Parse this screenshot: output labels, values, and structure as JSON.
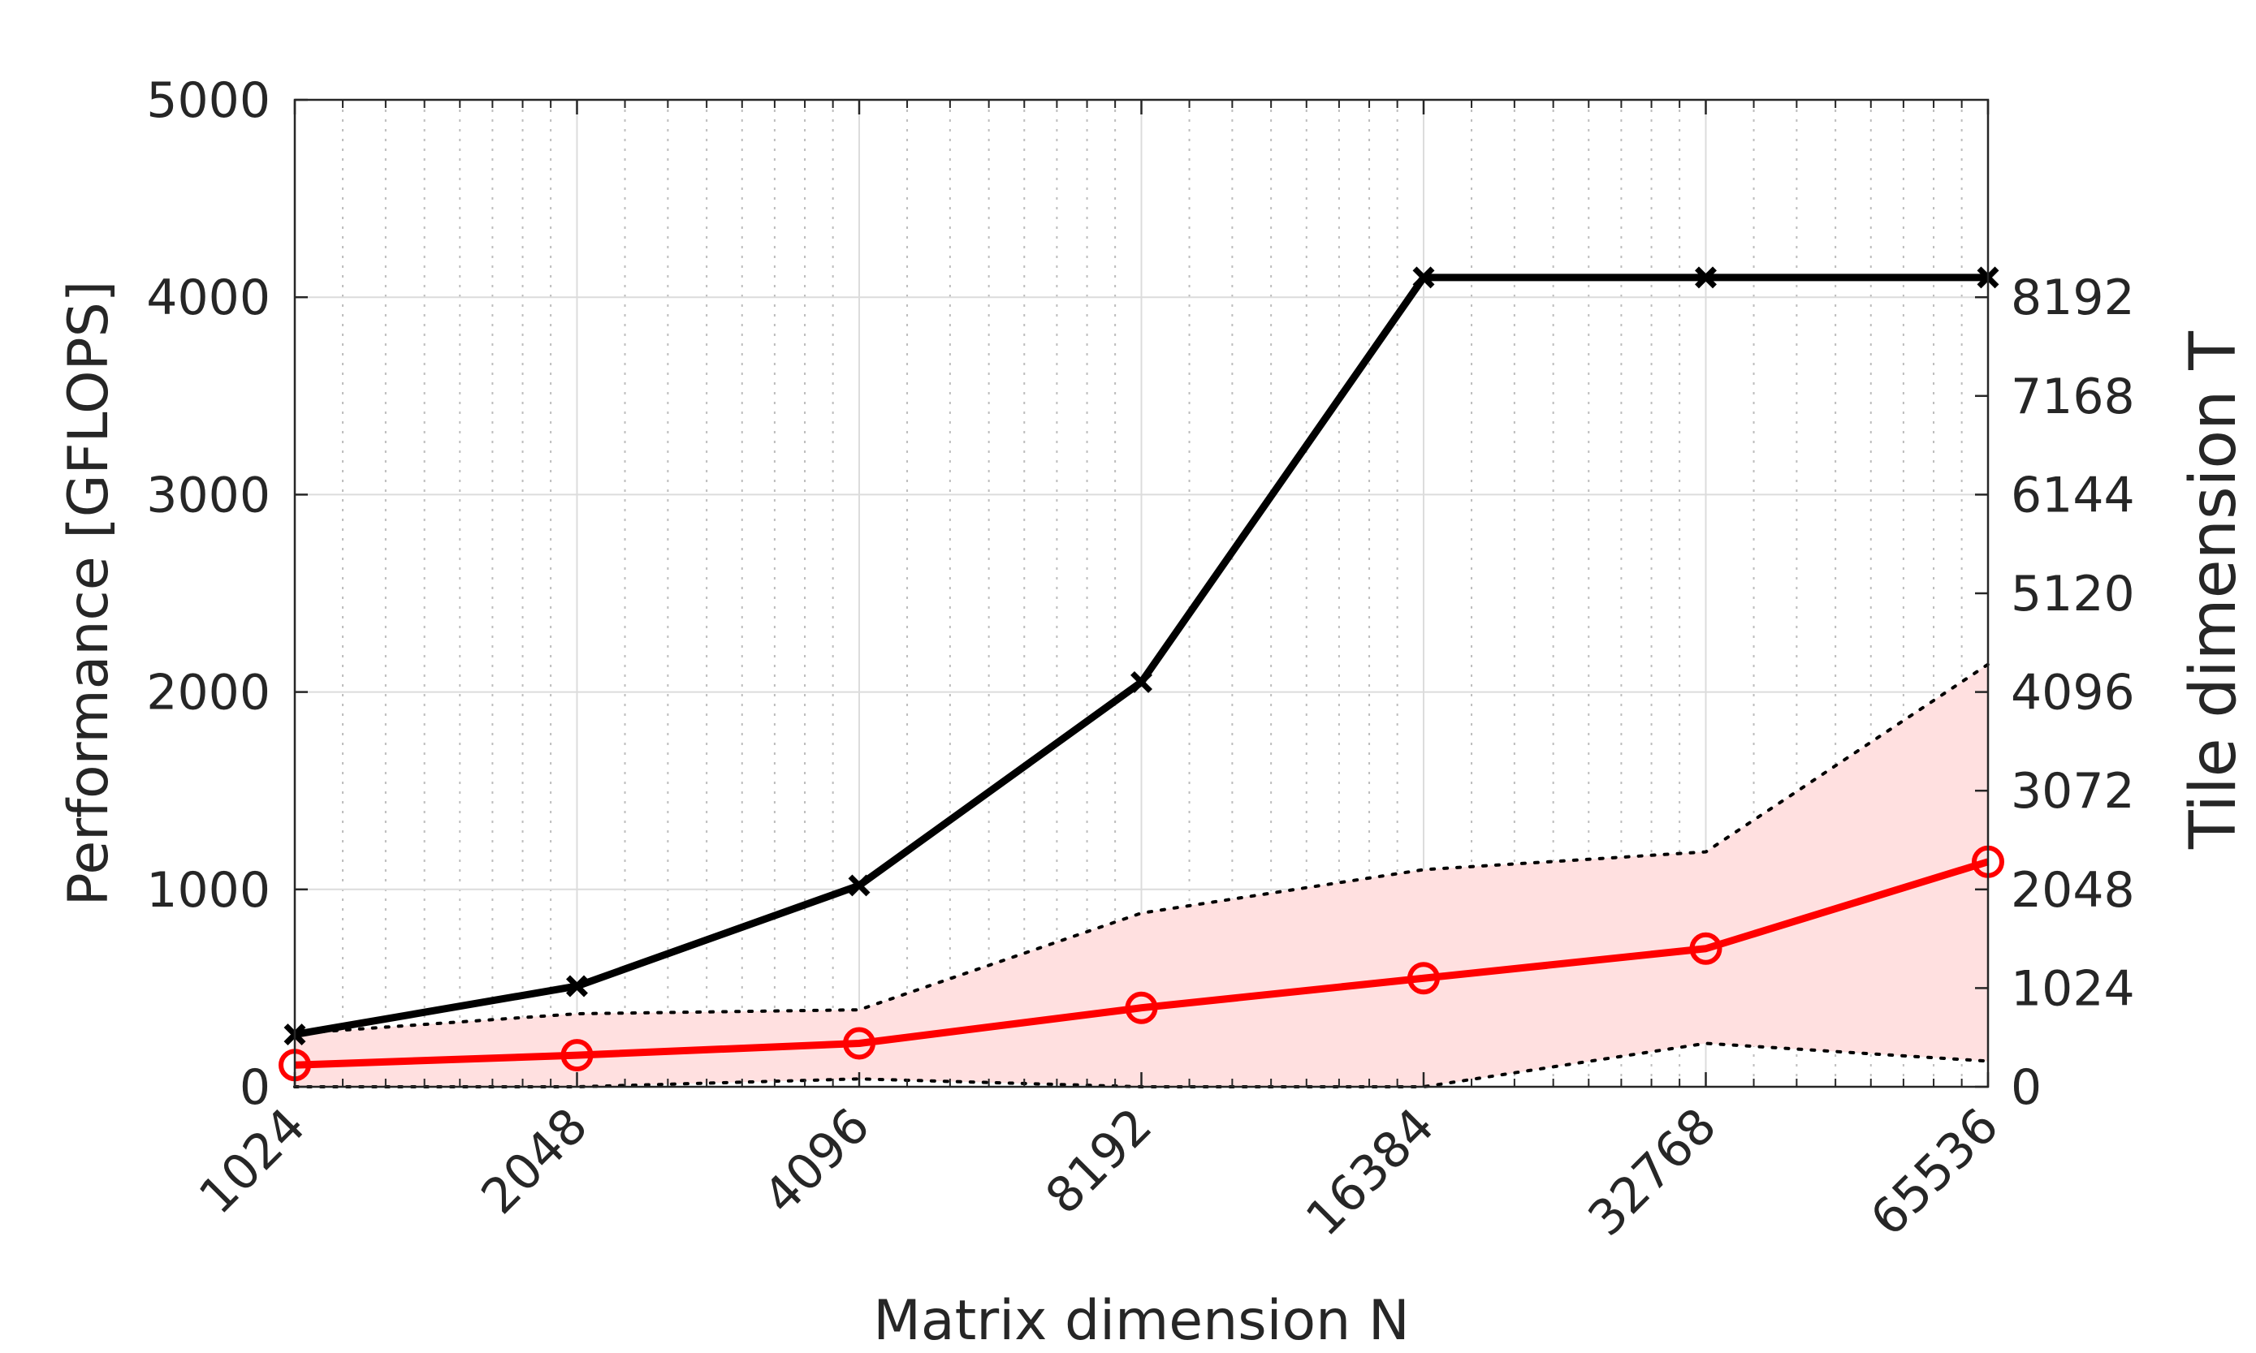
{
  "chart_data": {
    "type": "line",
    "xlabel": "Matrix dimension N",
    "ylabel_left": "Performance [GFLOPS]",
    "ylabel_right": "Tile dimension T",
    "x_scale": "log2",
    "x": [
      1024,
      2048,
      4096,
      8192,
      16384,
      32768,
      65536
    ],
    "x_tick_labels": [
      "1024",
      "2048",
      "4096",
      "8192",
      "16384",
      "32768",
      "65536"
    ],
    "y_left_ticks": [
      0,
      1000,
      2000,
      3000,
      4000,
      5000
    ],
    "y_left_tick_labels": [
      "0",
      "1000",
      "2000",
      "3000",
      "4000",
      "5000"
    ],
    "ylim_left": [
      0,
      5000
    ],
    "y_right_ticks": [
      0,
      1024,
      2048,
      3072,
      4096,
      5120,
      6144,
      7168,
      8192
    ],
    "y_right_tick_labels": [
      "0",
      "1024",
      "2048",
      "3072",
      "4096",
      "5120",
      "6144",
      "7168",
      "8192"
    ],
    "ylim_right": [
      0,
      10240
    ],
    "grid": true,
    "series": [
      {
        "axis": "left",
        "color": "#000000",
        "marker": "x",
        "values": [
          265,
          510,
          1020,
          2050,
          4100,
          4100,
          4100
        ]
      },
      {
        "axis": "left",
        "color": "#ff0000",
        "marker": "o",
        "values": [
          110,
          160,
          220,
          400,
          550,
          700,
          1140
        ]
      }
    ],
    "band": {
      "axis": "left",
      "fill": "#ffe0e0",
      "line_color": "#000000",
      "upper": [
        270,
        370,
        390,
        880,
        1100,
        1190,
        2140
      ],
      "lower": [
        0,
        0,
        40,
        0,
        0,
        220,
        130
      ]
    }
  }
}
